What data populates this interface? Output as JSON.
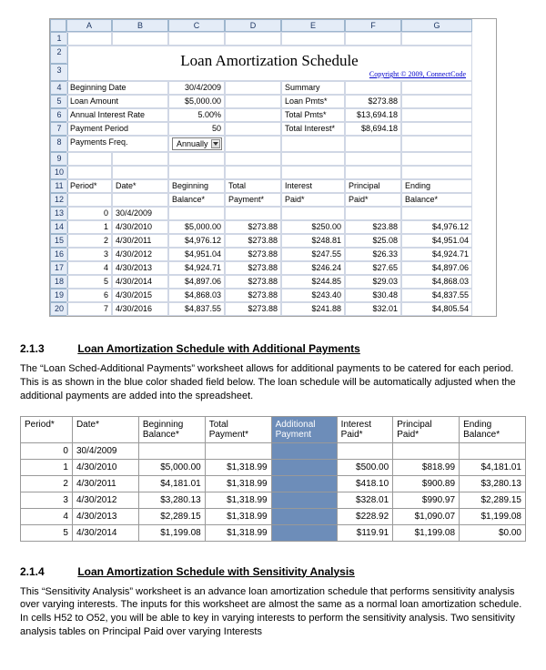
{
  "excel": {
    "cols": [
      "A",
      "B",
      "C",
      "D",
      "E",
      "F",
      "G"
    ],
    "col_widths": [
      "50px",
      "62px",
      "62px",
      "62px",
      "70px",
      "62px",
      "78px"
    ],
    "title": "Loan Amortization Schedule",
    "copyright": "Copyright © 2009, ConnectCode",
    "inputs": {
      "beginning_date_label": "Beginning Date",
      "beginning_date": "30/4/2009",
      "loan_amount_label": "Loan Amount",
      "loan_amount": "$5,000.00",
      "air_label": "Annual Interest Rate",
      "air": "5.00%",
      "pp_label": "Payment Period",
      "pp": "50",
      "freq_label": "Payments Freq.",
      "freq": "Annually"
    },
    "summary": {
      "label": "Summary",
      "loan_pmts_label": "Loan Pmts*",
      "loan_pmts": "$273.88",
      "total_pmts_label": "Total Pmts*",
      "total_pmts": "$13,694.18",
      "total_interest_label": "Total Interest*",
      "total_interest": "$8,694.18"
    },
    "sched_headers": [
      "Period*",
      "Date*",
      "Beginning Balance*",
      "Total Payment*",
      "Interest Paid*",
      "Principal Paid*",
      "Ending Balance*"
    ],
    "sched_rows": [
      [
        "0",
        "30/4/2009",
        "",
        "",
        "",
        "",
        ""
      ],
      [
        "1",
        "4/30/2010",
        "$5,000.00",
        "$273.88",
        "$250.00",
        "$23.88",
        "$4,976.12"
      ],
      [
        "2",
        "4/30/2011",
        "$4,976.12",
        "$273.88",
        "$248.81",
        "$25.08",
        "$4,951.04"
      ],
      [
        "3",
        "4/30/2012",
        "$4,951.04",
        "$273.88",
        "$247.55",
        "$26.33",
        "$4,924.71"
      ],
      [
        "4",
        "4/30/2013",
        "$4,924.71",
        "$273.88",
        "$246.24",
        "$27.65",
        "$4,897.06"
      ],
      [
        "5",
        "4/30/2014",
        "$4,897.06",
        "$273.88",
        "$244.85",
        "$29.03",
        "$4,868.03"
      ],
      [
        "6",
        "4/30/2015",
        "$4,868.03",
        "$273.88",
        "$243.40",
        "$30.48",
        "$4,837.55"
      ],
      [
        "7",
        "4/30/2016",
        "$4,837.55",
        "$273.88",
        "$241.88",
        "$32.01",
        "$4,805.54"
      ]
    ],
    "row_start": 13
  },
  "section1": {
    "num": "2.1.3",
    "title": "Loan Amortization Schedule with Additional Payments",
    "para": "The “Loan Sched-Additional Payments” worksheet allows for additional payments to be catered for each period. This is as shown in the blue color shaded field below. The loan schedule will be automatically adjusted when the additional payments are added into the spreadsheet."
  },
  "table2": {
    "headers": [
      "Period*",
      "Date*",
      "Beginning Balance*",
      "Total Payment*",
      "Additional Payment",
      "Interest Paid*",
      "Principal Paid*",
      "Ending Balance*"
    ],
    "hl_index": 4,
    "rows": [
      [
        "0",
        "30/4/2009",
        "",
        "",
        "",
        "",
        "",
        ""
      ],
      [
        "1",
        "4/30/2010",
        "$5,000.00",
        "$1,318.99",
        "",
        "$500.00",
        "$818.99",
        "$4,181.01"
      ],
      [
        "2",
        "4/30/2011",
        "$4,181.01",
        "$1,318.99",
        "",
        "$418.10",
        "$900.89",
        "$3,280.13"
      ],
      [
        "3",
        "4/30/2012",
        "$3,280.13",
        "$1,318.99",
        "",
        "$328.01",
        "$990.97",
        "$2,289.15"
      ],
      [
        "4",
        "4/30/2013",
        "$2,289.15",
        "$1,318.99",
        "",
        "$228.92",
        "$1,090.07",
        "$1,199.08"
      ],
      [
        "5",
        "4/30/2014",
        "$1,199.08",
        "$1,318.99",
        "",
        "$119.91",
        "$1,199.08",
        "$0.00"
      ]
    ]
  },
  "section2": {
    "num": "2.1.4",
    "title": "Loan Amortization Schedule with Sensitivity Analysis",
    "para": "This “Sensitivity Analysis” worksheet is an advance loan amortization schedule that performs sensitivity analysis over varying interests. The inputs for this worksheet are almost the same as a normal loan amortization schedule. In cells H52 to O52, you will be able to key in varying interests to perform the sensitivity analysis. Two sensitivity analysis tables on Principal Paid over varying Interests"
  },
  "style": {
    "header_bg": "#e4ecf7",
    "grid_border": "#d0d7e5",
    "hl_bg": "#6d8db9"
  }
}
